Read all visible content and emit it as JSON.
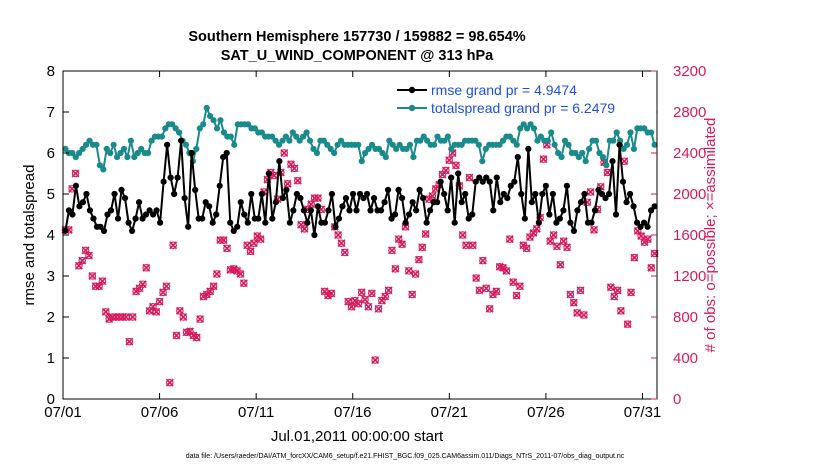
{
  "chart_data": {
    "type": "line",
    "title": "Southern Hemisphere 157730 / 159882 = 98.654%",
    "subtitle": "SAT_U_WIND_COMPONENT @ 313 hPa",
    "xlabel": "Jul.01,2011 00:00:00 start",
    "ylabel_left": "rmse and totalspread",
    "ylabel_right": "# of obs: o=possible; ×=assimilated",
    "x_ticks": [
      "07/01",
      "07/06",
      "07/11",
      "07/16",
      "07/21",
      "07/26",
      "07/31"
    ],
    "x_tick_days": [
      0,
      5,
      10,
      15,
      20,
      25,
      30
    ],
    "xlim_days": [
      0,
      30.75
    ],
    "ylim_left": [
      0,
      8
    ],
    "y_ticks_left": [
      "0",
      "1",
      "2",
      "3",
      "4",
      "5",
      "6",
      "7",
      "8"
    ],
    "ylim_right": [
      0,
      3200
    ],
    "y_ticks_right": [
      "0",
      "400",
      "800",
      "1200",
      "1600",
      "2000",
      "2400",
      "2800",
      "3200"
    ],
    "colors": {
      "rmse": "#000000",
      "spread": "#1a8a8a",
      "obs": "#d61a5e",
      "legend_text": "#1f4fe0",
      "right_axis": "#d61a5e"
    },
    "series": [
      {
        "name": "rmse grand pr = 4.9474",
        "axis": "left",
        "values": [
          4.1,
          4.6,
          4.5,
          5.2,
          4.7,
          4.8,
          5.0,
          4.6,
          4.4,
          4.2,
          4.2,
          4.1,
          4.5,
          4.6,
          5.0,
          4.4,
          5.1,
          4.9,
          4.3,
          4.1,
          4.4,
          4.8,
          4.4,
          4.5,
          4.6,
          4.5,
          4.6,
          4.3,
          5.3,
          6.2,
          5.4,
          5.0,
          5.4,
          6.3,
          4.9,
          4.2,
          6.0,
          5.1,
          4.4,
          4.4,
          4.8,
          4.7,
          4.3,
          4.5,
          5.2,
          5.9,
          6.0,
          4.3,
          4.1,
          4.2,
          4.8,
          4.5,
          4.3,
          5.0,
          4.4,
          4.4,
          5.0,
          4.3,
          5.5,
          4.4,
          4.8,
          5.8,
          4.9,
          5.1,
          4.3,
          4.6,
          5.0,
          4.9,
          4.6,
          4.3,
          4.6,
          4.0,
          4.7,
          4.3,
          4.3,
          4.6,
          5.0,
          4.2,
          4.4,
          4.7,
          4.9,
          4.6,
          5.0,
          4.6,
          5.0,
          4.9,
          5.0,
          4.6,
          4.9,
          4.6,
          4.6,
          4.8,
          5.1,
          4.4,
          4.5,
          5.1,
          4.9,
          4.3,
          4.5,
          4.8,
          4.6,
          5.1,
          4.9,
          4.3,
          4.6,
          4.8,
          4.8,
          5.3,
          5.0,
          4.6,
          5.4,
          4.3,
          5.5,
          4.8,
          5.0,
          4.4,
          4.5,
          5.3,
          5.4,
          5.3,
          5.4,
          5.3,
          4.6,
          5.4,
          4.8,
          5.0,
          4.9,
          5.2,
          5.3,
          5.9,
          5.0,
          4.4,
          6.1,
          4.8,
          5.0,
          4.3,
          5.0,
          5.2,
          4.5,
          5.0,
          4.3,
          4.4,
          4.6,
          5.2,
          4.3,
          4.1,
          4.6,
          4.8,
          5.0,
          4.3,
          4.3,
          4.6,
          5.1,
          5.0,
          4.9,
          5.0,
          5.8,
          4.5,
          6.2,
          5.3,
          4.8,
          5.0,
          4.7,
          4.3,
          4.2,
          4.3,
          4.2,
          4.6,
          4.7
        ]
      },
      {
        "name": "totalspread grand pr = 6.2479",
        "axis": "left",
        "values": [
          6.1,
          6.0,
          6.0,
          5.9,
          6.0,
          6.1,
          6.2,
          6.3,
          6.2,
          6.2,
          5.7,
          5.6,
          6.1,
          6.0,
          6.2,
          5.9,
          6.0,
          6.1,
          5.9,
          6.3,
          5.9,
          6.0,
          6.1,
          6.0,
          6.0,
          6.3,
          6.4,
          6.4,
          6.4,
          6.6,
          6.7,
          6.7,
          6.6,
          6.5,
          6.3,
          6.2,
          6.0,
          5.8,
          6.1,
          6.6,
          6.7,
          7.1,
          6.9,
          6.8,
          6.6,
          6.8,
          6.5,
          6.4,
          6.4,
          6.2,
          6.7,
          6.7,
          6.7,
          6.7,
          6.6,
          6.6,
          6.5,
          6.5,
          6.4,
          6.4,
          6.4,
          6.3,
          6.2,
          6.3,
          6.4,
          6.3,
          6.5,
          6.4,
          6.3,
          6.4,
          6.5,
          6.3,
          6.1,
          6.0,
          6.3,
          6.3,
          6.2,
          6.1,
          6.0,
          6.2,
          6.3,
          6.2,
          6.2,
          6.2,
          6.2,
          6.2,
          5.8,
          6.0,
          6.1,
          6.2,
          6.1,
          6.1,
          6.0,
          5.9,
          6.3,
          6.2,
          6.1,
          6.2,
          6.1,
          6.1,
          6.2,
          5.9,
          6.3,
          6.3,
          6.4,
          6.3,
          6.2,
          6.2,
          6.4,
          6.3,
          6.3,
          6.4,
          6.1,
          6.2,
          6.2,
          6.2,
          6.3,
          6.3,
          6.3,
          6.3,
          6.2,
          5.8,
          6.1,
          6.2,
          6.2,
          6.2,
          6.2,
          6.3,
          6.4,
          6.4,
          6.3,
          6.2,
          6.6,
          6.7,
          6.6,
          6.7,
          6.6,
          6.3,
          6.4,
          6.3,
          6.3,
          6.5,
          6.2,
          6.0,
          5.9,
          6.3,
          6.2,
          6.0,
          6.0,
          5.9,
          6.0,
          5.8,
          6.1,
          6.3,
          6.3,
          6.0,
          5.9,
          5.7,
          6.3,
          6.3,
          6.5,
          6.3,
          6.1,
          6.2,
          6.5,
          6.1,
          6.6,
          6.6,
          6.6,
          6.5,
          6.5,
          6.2
        ]
      },
      {
        "name": "obs possible/assimilated",
        "axis": "right",
        "values": [
          1650,
          1650,
          2050,
          2200,
          1300,
          1350,
          1450,
          1400,
          1200,
          1100,
          1100,
          1150,
          850,
          780,
          800,
          800,
          800,
          800,
          800,
          560,
          800,
          1050,
          1080,
          1120,
          1280,
          860,
          900,
          850,
          950,
          1040,
          1100,
          160,
          1500,
          620,
          860,
          800,
          650,
          660,
          620,
          600,
          780,
          1000,
          1020,
          1050,
          1100,
          1220,
          1550,
          1550,
          1470,
          1260,
          1270,
          1250,
          1220,
          1130,
          1500,
          1440,
          1520,
          1590,
          1560,
          2020,
          2140,
          2210,
          2180,
          1950,
          2210,
          2400,
          2100,
          2290,
          2250,
          2130,
          1700,
          1660,
          1850,
          1900,
          1960,
          1960,
          1850,
          1050,
          1010,
          1030,
          1680,
          1600,
          1520,
          1430,
          950,
          900,
          960,
          930,
          1040,
          970,
          900,
          1030,
          380,
          880,
          960,
          1000,
          1060,
          1450,
          1270,
          1560,
          1510,
          1680,
          1250,
          1020,
          1220,
          1360,
          1480,
          1610,
          1950,
          1980,
          2050,
          2090,
          2190,
          2230,
          2330,
          2400,
          2280,
          2080,
          1600,
          1500,
          2160,
          1500,
          1180,
          1060,
          1350,
          1080,
          880,
          1020,
          1050,
          1290,
          1280,
          1250,
          1560,
          1140,
          1010,
          1100,
          1500,
          1470,
          1580,
          1620,
          1660,
          1770,
          2340,
          2480,
          1540,
          1600,
          1490,
          1310,
          1540,
          1480,
          1020,
          940,
          840,
          1060,
          820,
          1920,
          2020,
          1650,
          1850,
          2070,
          2310,
          2210,
          1090,
          1000,
          1060,
          860,
          2320,
          730,
          1040,
          1380,
          1640,
          1590,
          1530,
          1560,
          1280,
          1420
        ]
      }
    ],
    "legend": [
      "rmse grand pr = 4.9474",
      "totalspread grand pr = 6.2479"
    ],
    "legend_position": "top-right",
    "grid": false
  },
  "footer": "data file: /Users/raeder/DAI/ATM_forcXX/CAM6_setup/f.e21.FHIST_BGC.f09_025.CAM6assim.011/Diags_NTrS_2011-07/obs_diag_output.nc"
}
